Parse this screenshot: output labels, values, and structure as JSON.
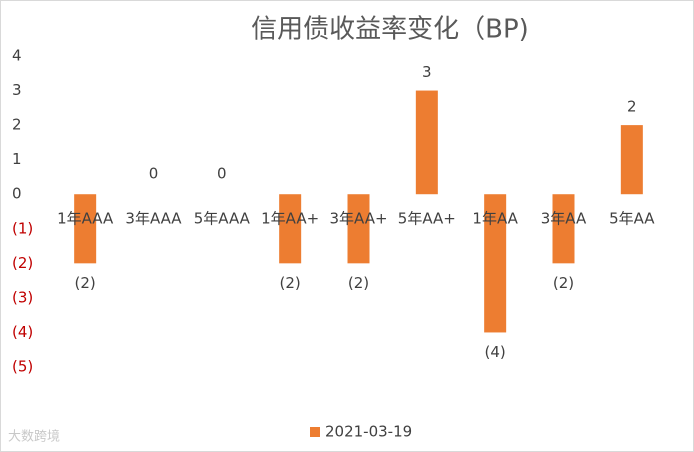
{
  "chart_data": {
    "type": "bar",
    "title": "信用债收益率变化（BP)",
    "categories": [
      "1年AAA",
      "3年AAA",
      "5年AAA",
      "1年AA+",
      "3年AA+",
      "5年AA+",
      "1年AA",
      "3年AA",
      "5年AA"
    ],
    "series": [
      {
        "name": "2021-03-19",
        "color": "#ed7d31",
        "values": [
          -2,
          0,
          0,
          -2,
          -2,
          3,
          -4,
          -2,
          2
        ],
        "value_labels": [
          "(2)",
          "0",
          "0",
          "(2)",
          "(2)",
          "3",
          "(4)",
          "(2)",
          "2"
        ]
      }
    ],
    "ylim": [
      -5,
      4
    ],
    "yticks": [
      4,
      3,
      2,
      1,
      0,
      {
        "value": -1,
        "label": "(1)"
      },
      {
        "value": -2,
        "label": "(2)"
      },
      {
        "value": -3,
        "label": "(3)"
      },
      {
        "value": -4,
        "label": "(4)"
      },
      {
        "value": -5,
        "label": "(5)"
      }
    ],
    "negative_label_color": "#c00000",
    "grid": false,
    "legend": "bottom",
    "watermark": "大数跨境"
  }
}
